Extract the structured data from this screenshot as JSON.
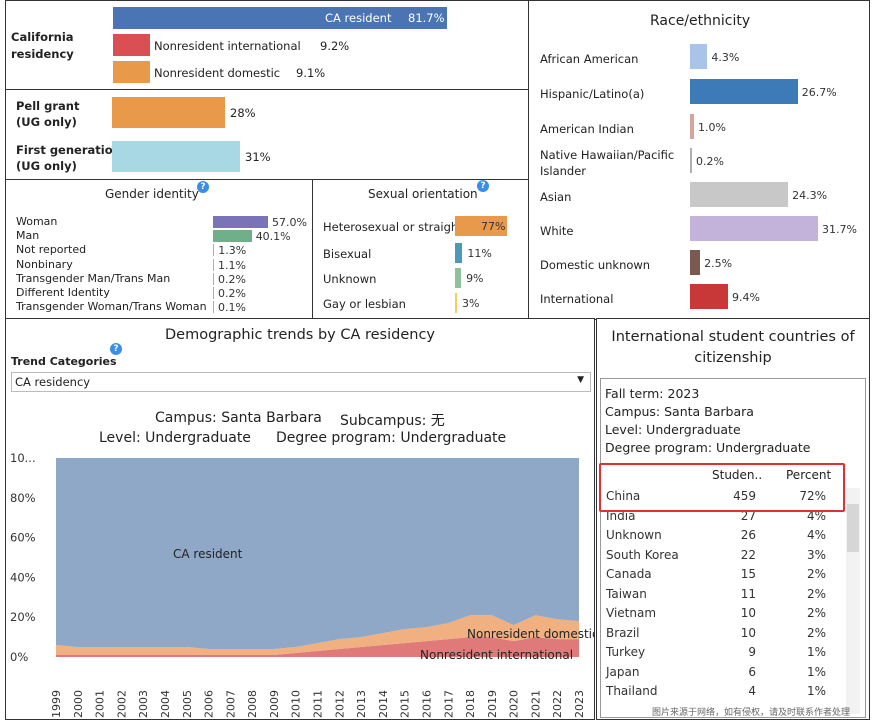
{
  "residency": {
    "label": "California\nresidency",
    "items": [
      {
        "name": "CA resident",
        "value": "81.7%",
        "color": "#4a74b4"
      },
      {
        "name": "Nonresident international",
        "value": "9.2%",
        "color": "#d94f54"
      },
      {
        "name": "Nonresident domestic",
        "value": "9.1%",
        "color": "#e8994a"
      }
    ]
  },
  "pell": {
    "label": "Pell grant\n(UG only)",
    "value": "28%",
    "color": "#e8994a"
  },
  "firstgen": {
    "label": "First generation\n(UG only)",
    "value": "31%",
    "color": "#a8d8e4"
  },
  "gender": {
    "title": "Gender identity",
    "items": [
      {
        "name": "Woman",
        "value": "57.0%",
        "color": "#7a73b8"
      },
      {
        "name": "Man",
        "value": "40.1%",
        "color": "#6fb08a"
      },
      {
        "name": "Not reported",
        "value": "1.3%",
        "color": "#8fc19a"
      },
      {
        "name": "Nonbinary",
        "value": "1.1%",
        "color": "#8fc19a"
      },
      {
        "name": "Transgender Man/Trans Man",
        "value": "0.2%",
        "color": "#8fc19a"
      },
      {
        "name": "Different Identity",
        "value": "0.2%",
        "color": "#8fc19a"
      },
      {
        "name": "Transgender Woman/Trans Woman",
        "value": "0.1%",
        "color": "#8fc19a"
      }
    ]
  },
  "sexual": {
    "title": "Sexual orientation",
    "items": [
      {
        "name": "Heterosexual or straigh",
        "value": "77%",
        "color": "#e8994a"
      },
      {
        "name": "Bisexual",
        "value": "11%",
        "color": "#4a9ab8"
      },
      {
        "name": "Unknown",
        "value": "9%",
        "color": "#8fc19a"
      },
      {
        "name": "Gay or lesbian",
        "value": "3%",
        "color": "#f0d05a"
      }
    ]
  },
  "race": {
    "title": "Race/ethnicity",
    "items": [
      {
        "name": "African American",
        "value": "4.3%",
        "color": "#a9c4e8"
      },
      {
        "name": "Hispanic/Latino(a)",
        "value": "26.7%",
        "color": "#3d7ab8"
      },
      {
        "name": "American Indian",
        "value": "1.0%",
        "color": "#d4a59a"
      },
      {
        "name": "Native Hawaiian/Pacific\nIslander",
        "value": "0.2%",
        "color": "#b0b0b0"
      },
      {
        "name": "Asian",
        "value": "24.3%",
        "color": "#c8c8c8"
      },
      {
        "name": "White",
        "value": "31.7%",
        "color": "#c3b3da"
      },
      {
        "name": "Domestic unknown",
        "value": "2.5%",
        "color": "#7a5a50"
      },
      {
        "name": "International",
        "value": "9.4%",
        "color": "#c93838"
      }
    ]
  },
  "trends": {
    "title": "Demographic trends by CA residency",
    "category_label": "Trend Categories",
    "dropdown_value": "CA residency",
    "campus": "Campus: Santa Barbara",
    "subcampus": "Subcampus: 无",
    "level": "Level: Undergraduate",
    "program": "Degree program: Undergraduate"
  },
  "chart_data": {
    "type": "area",
    "x": [
      "1999",
      "2000",
      "2001",
      "2002",
      "2003",
      "2004",
      "2005",
      "2006",
      "2007",
      "2008",
      "2009",
      "2010",
      "2011",
      "2012",
      "2013",
      "2014",
      "2015",
      "2016",
      "2017",
      "2018",
      "2019",
      "2020",
      "2021",
      "2022",
      "2023"
    ],
    "ytick_labels": [
      "0%",
      "20%",
      "40%",
      "60%",
      "80%",
      "10..."
    ],
    "ylim": [
      0,
      100
    ],
    "series": [
      {
        "name": "Nonresident international",
        "color": "#e07a7a",
        "values": [
          1,
          1,
          1,
          1,
          1,
          1,
          1,
          1,
          1,
          1,
          1,
          2,
          3,
          4,
          5,
          6,
          7,
          8,
          9,
          10,
          10,
          8,
          10,
          9,
          9
        ]
      },
      {
        "name": "Nonresident domestic",
        "color": "#f0b080",
        "values": [
          5,
          4,
          4,
          4,
          4,
          4,
          4,
          3,
          3,
          3,
          3,
          3,
          4,
          5,
          5,
          6,
          7,
          7,
          8,
          11,
          11,
          8,
          11,
          10,
          9
        ]
      },
      {
        "name": "CA resident",
        "color": "#8fa8c8",
        "values": [
          94,
          95,
          95,
          95,
          95,
          95,
          95,
          96,
          96,
          96,
          96,
          95,
          93,
          91,
          90,
          88,
          86,
          85,
          83,
          79,
          79,
          84,
          79,
          81,
          82
        ]
      }
    ],
    "annotations": [
      "CA resident",
      "Nonresident domestic",
      "Nonresident international"
    ]
  },
  "intl": {
    "title": "International student countries of citizenship",
    "fall_term": "Fall term: 2023",
    "campus": "Campus: Santa Barbara",
    "level": "Level: Undergraduate",
    "program": "Degree program: Undergraduate",
    "col_students": "Studen..",
    "col_percent": "Percent",
    "rows": [
      {
        "country": "China",
        "students": "459",
        "percent": "72%"
      },
      {
        "country": "India",
        "students": "27",
        "percent": "4%"
      },
      {
        "country": "Unknown",
        "students": "26",
        "percent": "4%"
      },
      {
        "country": "South Korea",
        "students": "22",
        "percent": "3%"
      },
      {
        "country": "Canada",
        "students": "15",
        "percent": "2%"
      },
      {
        "country": "Taiwan",
        "students": "11",
        "percent": "2%"
      },
      {
        "country": "Vietnam",
        "students": "10",
        "percent": "2%"
      },
      {
        "country": "Brazil",
        "students": "10",
        "percent": "2%"
      },
      {
        "country": "Turkey",
        "students": "9",
        "percent": "1%"
      },
      {
        "country": "Japan",
        "students": "6",
        "percent": "1%"
      },
      {
        "country": "Thailand",
        "students": "4",
        "percent": "1%"
      }
    ]
  },
  "watermark": "图片来源于网络，如有侵权，请及时联系作者处理"
}
